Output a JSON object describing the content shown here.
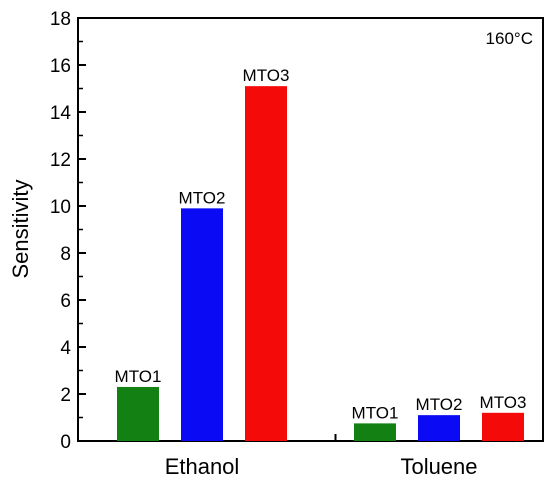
{
  "chart_data": {
    "type": "bar",
    "title": "",
    "xlabel": "",
    "ylabel": "Sensitivity",
    "ylim": [
      0,
      18
    ],
    "yticks": [
      0,
      2,
      4,
      6,
      8,
      10,
      12,
      14,
      16,
      18
    ],
    "annotation": "160°C",
    "grid": false,
    "groups": [
      {
        "category": "Ethanol",
        "bars": [
          {
            "label": "MTO1",
            "value": 2.3,
            "color": "#138013"
          },
          {
            "label": "MTO2",
            "value": 9.9,
            "color": "#0a0af5"
          },
          {
            "label": "MTO3",
            "value": 15.1,
            "color": "#f50a0a"
          }
        ]
      },
      {
        "category": "Toluene",
        "bars": [
          {
            "label": "MTO1",
            "value": 0.75,
            "color": "#138013"
          },
          {
            "label": "MTO2",
            "value": 1.1,
            "color": "#0a0af5"
          },
          {
            "label": "MTO3",
            "value": 1.2,
            "color": "#f50a0a"
          }
        ]
      }
    ]
  }
}
